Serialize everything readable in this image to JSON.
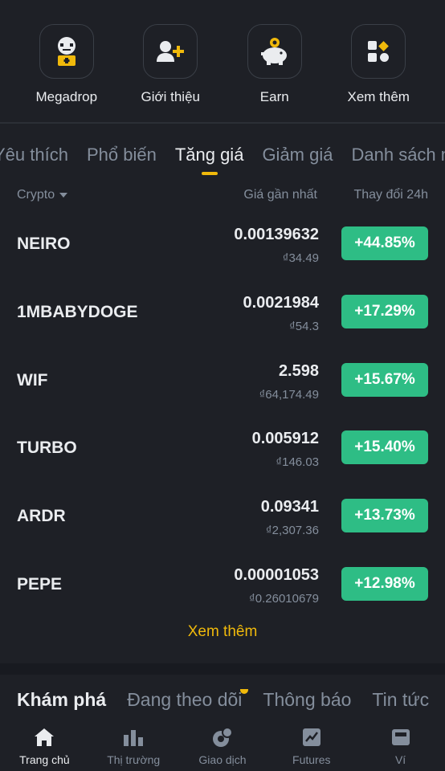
{
  "shortcuts": [
    {
      "label": "Megadrop",
      "icon": "megadrop-icon"
    },
    {
      "label": "Giới thiệu",
      "icon": "add-user-icon"
    },
    {
      "label": "Earn",
      "icon": "piggy-bank-icon"
    },
    {
      "label": "Xem thêm",
      "icon": "more-grid-icon"
    }
  ],
  "tabs": [
    {
      "label": "Yêu thích",
      "active": false
    },
    {
      "label": "Phổ biến",
      "active": false
    },
    {
      "label": "Tăng giá",
      "active": true
    },
    {
      "label": "Giảm giá",
      "active": false
    },
    {
      "label": "Danh sách mới",
      "active": false
    }
  ],
  "columns": {
    "crypto": "Crypto",
    "price": "Giá gần nhất",
    "change": "Thay đổi 24h"
  },
  "rows": [
    {
      "symbol": "NEIRO",
      "price": "0.00139632",
      "local": "₫34.49",
      "change": "+44.85%"
    },
    {
      "symbol": "1MBABYDOGE",
      "price": "0.0021984",
      "local": "₫54.3",
      "change": "+17.29%"
    },
    {
      "symbol": "WIF",
      "price": "2.598",
      "local": "₫64,174.49",
      "change": "+15.67%"
    },
    {
      "symbol": "TURBO",
      "price": "0.005912",
      "local": "₫146.03",
      "change": "+15.40%"
    },
    {
      "symbol": "ARDR",
      "price": "0.09341",
      "local": "₫2,307.36",
      "change": "+13.73%"
    },
    {
      "symbol": "PEPE",
      "price": "0.00001053",
      "local": "₫0.26010679",
      "change": "+12.98%"
    }
  ],
  "see_more": "Xem thêm",
  "section_tabs": [
    {
      "label": "Khám phá",
      "active": true
    },
    {
      "label": "Đang theo dõi",
      "active": false,
      "dot": true
    },
    {
      "label": "Thông báo",
      "active": false
    },
    {
      "label": "Tin tức",
      "active": false
    }
  ],
  "bottom_nav": [
    {
      "label": "Trang chủ",
      "icon": "home-icon",
      "active": true
    },
    {
      "label": "Thị trường",
      "icon": "bar-chart-icon",
      "active": false
    },
    {
      "label": "Giao dịch",
      "icon": "trade-icon",
      "active": false
    },
    {
      "label": "Futures",
      "icon": "futures-icon",
      "active": false
    },
    {
      "label": "Ví",
      "icon": "wallet-icon",
      "active": false
    }
  ],
  "colors": {
    "background": "#1e2026",
    "accent": "#f0b90b",
    "positive": "#2ebd85",
    "muted": "#848e9c"
  }
}
